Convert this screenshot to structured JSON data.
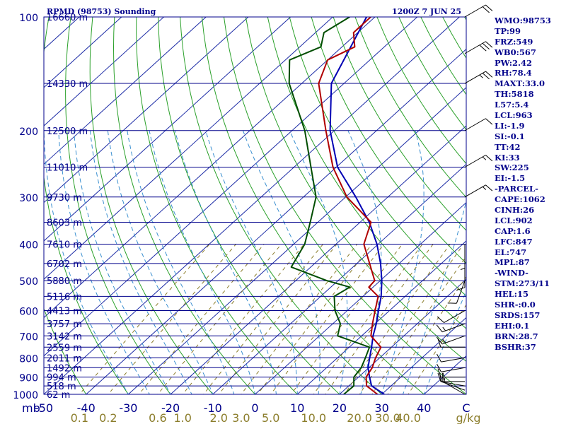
{
  "header": {
    "station": "RPMD (98753) Sounding",
    "time": "1200Z  7 JUN 25"
  },
  "indices": [
    "WMO:98753",
    "TP:99",
    "FRZ:549",
    "WB0:567",
    "PW:2.42",
    "RH:78.4",
    "MAXT:33.0",
    "TH:5818",
    "L57:5.4",
    "LCL:963",
    "LI:-1.9",
    "SI:-0.1",
    "TT:42",
    "KI:33",
    "SW:225",
    "EI:-1.5",
    "-PARCEL-",
    "CAPE:1062",
    "CINH:26",
    "LCL:902",
    "CAP:1.6",
    "LFC:847",
    "EL:747",
    "MPL:87",
    "-WIND-",
    "STM:273/11",
    "HEL:15",
    "SHR-:0.0",
    "SRDS:157",
    "EHI:0.1",
    "BRN:28.7",
    "BSHR:37"
  ],
  "colors": {
    "axis": "#00008b",
    "isobar": "#00008b",
    "isotherm": "#1c2ba6",
    "dry_adiabat": "#2aa02a",
    "moist_adiabat": "#3a8fd0",
    "mixing_ratio": "#8b7d2b",
    "temperature": "#b00000",
    "dewpoint": "#004d00",
    "parcel": "#0000b4",
    "wind_barb": "#000000"
  },
  "chart_data": {
    "type": "skew-t",
    "y_axis": "Pressure (hPa), log scale",
    "x_axis": "Temperature (C), skewed",
    "ylim": [
      1000,
      100
    ],
    "xlim": [
      -50,
      50
    ],
    "pressure_ticks": [
      {
        "p": 100,
        "label": "100",
        "height": "16660 m"
      },
      {
        "p": 150,
        "label": "",
        "height": "14330 m"
      },
      {
        "p": 200,
        "label": "200",
        "height": "12500 m"
      },
      {
        "p": 250,
        "label": "",
        "height": "11010 m"
      },
      {
        "p": 300,
        "label": "300",
        "height": "9730 m"
      },
      {
        "p": 350,
        "label": "",
        "height": "8603 m"
      },
      {
        "p": 400,
        "label": "400",
        "height": "7610 m"
      },
      {
        "p": 450,
        "label": "",
        "height": "6702 m"
      },
      {
        "p": 500,
        "label": "500",
        "height": "5880 m"
      },
      {
        "p": 550,
        "label": "",
        "height": "5116 m"
      },
      {
        "p": 600,
        "label": "600",
        "height": "4413 m"
      },
      {
        "p": 650,
        "label": "",
        "height": "3757 m"
      },
      {
        "p": 700,
        "label": "700",
        "height": "3142 m"
      },
      {
        "p": 750,
        "label": "",
        "height": "2559 m"
      },
      {
        "p": 800,
        "label": "800",
        "height": "2011 m"
      },
      {
        "p": 850,
        "label": "",
        "height": "1492 m"
      },
      {
        "p": 900,
        "label": "900",
        "height": "994 m"
      },
      {
        "p": 950,
        "label": "",
        "height": "518 m"
      },
      {
        "p": 1000,
        "label": "1000",
        "height": "62 m"
      }
    ],
    "mb_label": "mb",
    "temp_ticks": [
      -50,
      -40,
      -30,
      -20,
      -10,
      0,
      10,
      20,
      30,
      40
    ],
    "temp_tick_labels": [
      "-50",
      "-40",
      "-30",
      "-20",
      "-10",
      "0",
      "10",
      "20",
      "30",
      "40"
    ],
    "corner_label": "C",
    "mixing_ratio_labels": [
      {
        "w": 0.1,
        "label": "0.1"
      },
      {
        "w": 0.2,
        "label": "0.2"
      },
      {
        "w": 0.6,
        "label": "0.6"
      },
      {
        "w": 1.0,
        "label": "1.0"
      },
      {
        "w": 2.0,
        "label": "2.0"
      },
      {
        "w": 3.0,
        "label": "3.0"
      },
      {
        "w": 5.0,
        "label": "5.0"
      },
      {
        "w": 10.0,
        "label": "10.0"
      },
      {
        "w": 20.0,
        "label": "20.0"
      },
      {
        "w": 30.0,
        "label": "30.0"
      },
      {
        "w": 40.0,
        "label": "40.0"
      }
    ],
    "mixing_ratio_unit": "g/kg",
    "temperature_profile": [
      {
        "p": 1000,
        "t": 29
      },
      {
        "p": 950,
        "t": 24.2
      },
      {
        "p": 900,
        "t": 21.8
      },
      {
        "p": 850,
        "t": 20.8
      },
      {
        "p": 800,
        "t": 19
      },
      {
        "p": 750,
        "t": 17.5
      },
      {
        "p": 700,
        "t": 12.2
      },
      {
        "p": 650,
        "t": 9.4
      },
      {
        "p": 600,
        "t": 6.6
      },
      {
        "p": 550,
        "t": 3.6
      },
      {
        "p": 520,
        "t": -1
      },
      {
        "p": 500,
        "t": -1.3
      },
      {
        "p": 450,
        "t": -7
      },
      {
        "p": 400,
        "t": -13.4
      },
      {
        "p": 350,
        "t": -17.4
      },
      {
        "p": 300,
        "t": -29.7
      },
      {
        "p": 250,
        "t": -40.8
      },
      {
        "p": 200,
        "t": -52
      },
      {
        "p": 150,
        "t": -66
      },
      {
        "p": 130,
        "t": -70
      },
      {
        "p": 120,
        "t": -67
      },
      {
        "p": 110,
        "t": -71
      },
      {
        "p": 100,
        "t": -71
      }
    ],
    "dewpoint_profile": [
      {
        "p": 1000,
        "t": 21
      },
      {
        "p": 950,
        "t": 21.2
      },
      {
        "p": 900,
        "t": 18.9
      },
      {
        "p": 850,
        "t": 18.2
      },
      {
        "p": 800,
        "t": 16.6
      },
      {
        "p": 750,
        "t": 14.8
      },
      {
        "p": 700,
        "t": 4.3
      },
      {
        "p": 650,
        "t": 1.8
      },
      {
        "p": 600,
        "t": -2.9
      },
      {
        "p": 550,
        "t": -6.8
      },
      {
        "p": 520,
        "t": -5.5
      },
      {
        "p": 500,
        "t": -12.6
      },
      {
        "p": 460,
        "t": -24.6
      },
      {
        "p": 400,
        "t": -27.4
      },
      {
        "p": 350,
        "t": -31.8
      },
      {
        "p": 300,
        "t": -37
      },
      {
        "p": 250,
        "t": -46
      },
      {
        "p": 200,
        "t": -57
      },
      {
        "p": 150,
        "t": -73
      },
      {
        "p": 130,
        "t": -79
      },
      {
        "p": 120,
        "t": -75
      },
      {
        "p": 110,
        "t": -78
      },
      {
        "p": 100,
        "t": -76
      }
    ],
    "parcel_profile": [
      {
        "p": 1000,
        "t": 30.6
      },
      {
        "p": 950,
        "t": 25.4
      },
      {
        "p": 900,
        "t": 22.6
      },
      {
        "p": 850,
        "t": 19.8
      },
      {
        "p": 800,
        "t": 17.6
      },
      {
        "p": 750,
        "t": 15.3
      },
      {
        "p": 700,
        "t": 12.7
      },
      {
        "p": 650,
        "t": 10.3
      },
      {
        "p": 600,
        "t": 7.4
      },
      {
        "p": 550,
        "t": 4.3
      },
      {
        "p": 500,
        "t": 0.4
      },
      {
        "p": 450,
        "t": -4.4
      },
      {
        "p": 400,
        "t": -10.3
      },
      {
        "p": 350,
        "t": -17.8
      },
      {
        "p": 300,
        "t": -27.6
      },
      {
        "p": 250,
        "t": -39.7
      },
      {
        "p": 200,
        "t": -51
      },
      {
        "p": 150,
        "t": -63
      },
      {
        "p": 100,
        "t": -72
      }
    ],
    "winds": [
      {
        "p": 1000,
        "dir": 300,
        "spd": 5
      },
      {
        "p": 975,
        "dir": 290,
        "spd": 10
      },
      {
        "p": 950,
        "dir": 280,
        "spd": 10
      },
      {
        "p": 925,
        "dir": 270,
        "spd": 15
      },
      {
        "p": 900,
        "dir": 270,
        "spd": 15
      },
      {
        "p": 850,
        "dir": 260,
        "spd": 10
      },
      {
        "p": 800,
        "dir": 260,
        "spd": 10
      },
      {
        "p": 750,
        "dir": 270,
        "spd": 10
      },
      {
        "p": 700,
        "dir": 250,
        "spd": 15
      },
      {
        "p": 650,
        "dir": 250,
        "spd": 15
      },
      {
        "p": 600,
        "dir": 240,
        "spd": 10
      },
      {
        "p": 500,
        "dir": 200,
        "spd": 10
      },
      {
        "p": 450,
        "dir": 180,
        "spd": 10
      },
      {
        "p": 400,
        "dir": 180,
        "spd": 5
      },
      {
        "p": 300,
        "dir": 60,
        "spd": 15
      },
      {
        "p": 250,
        "dir": 60,
        "spd": 15
      },
      {
        "p": 200,
        "dir": 60,
        "spd": 10
      },
      {
        "p": 150,
        "dir": 60,
        "spd": 25
      },
      {
        "p": 125,
        "dir": 60,
        "spd": 30
      },
      {
        "p": 100,
        "dir": 60,
        "spd": 20
      }
    ]
  }
}
